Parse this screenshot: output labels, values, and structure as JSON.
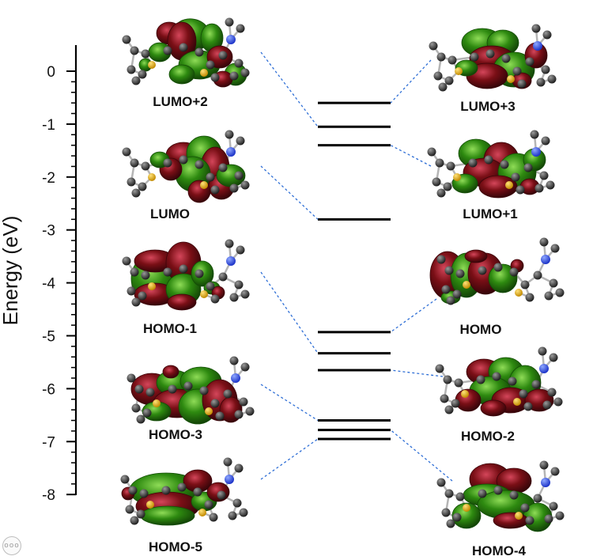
{
  "axis": {
    "title": "Energy (eV)",
    "ticks": [
      "0",
      "-1",
      "-2",
      "-3",
      "-4",
      "-5",
      "-6",
      "-7",
      "-8"
    ]
  },
  "orbitals": {
    "lumo_plus_2": "LUMO+2",
    "lumo": "LUMO",
    "homo_minus_1": "HOMO-1",
    "homo_minus_3": "HOMO-3",
    "homo_minus_5": "HOMO-5",
    "lumo_plus_3": "LUMO+3",
    "lumo_plus_1": "LUMO+1",
    "homo": "HOMO",
    "homo_minus_2": "HOMO-2",
    "homo_minus_4": "HOMO-4"
  },
  "energy_levels_ev": {
    "LUMO+3": -0.6,
    "LUMO+2": -1.05,
    "LUMO+1": -1.4,
    "LUMO": -2.8,
    "HOMO": -4.93,
    "HOMO-1": -5.33,
    "HOMO-2": -5.65,
    "HOMO-3": -6.6,
    "HOMO-4": -6.78,
    "HOMO-5": -6.95
  },
  "colors": {
    "lobe_green": "#2e8a10",
    "lobe_red": "#7a0f16",
    "connector": "#2f6fd6",
    "level_line": "#000000"
  },
  "icons": {
    "corner": "more-icon"
  },
  "corner_icon_text": "ooo"
}
